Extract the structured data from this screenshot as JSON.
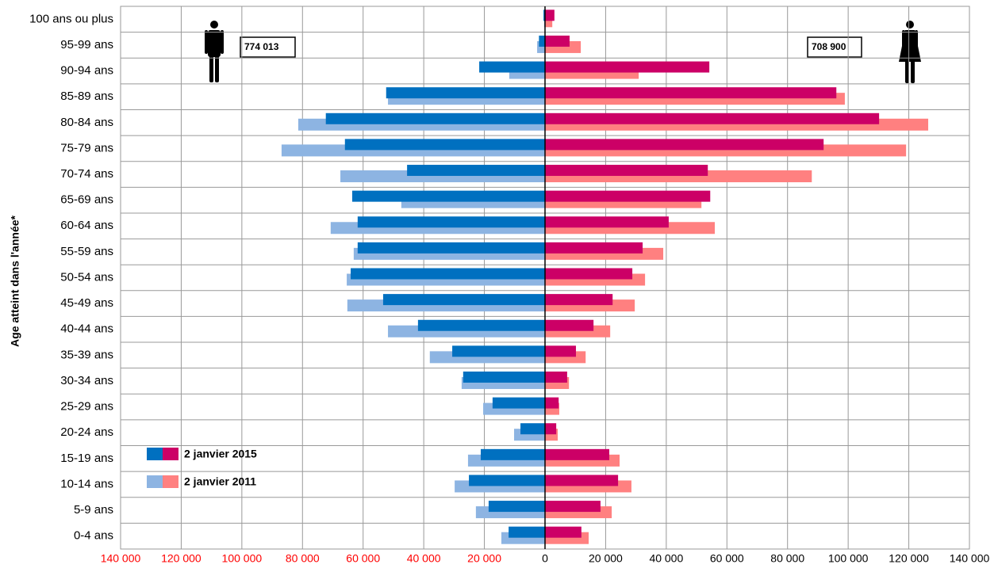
{
  "chart_data": {
    "type": "pyramid",
    "y_axis_label": "Age atteint dans l'année*",
    "categories": [
      "0-4 ans",
      "5-9 ans",
      "10-14 ans",
      "15-19 ans",
      "20-24 ans",
      "25-29 ans",
      "30-34 ans",
      "35-39 ans",
      "40-44 ans",
      "45-49 ans",
      "50-54 ans",
      "55-59 ans",
      "60-64 ans",
      "65-69 ans",
      "70-74 ans",
      "75-79 ans",
      "80-84 ans",
      "85-89 ans",
      "90-94 ans",
      "95-99 ans",
      "100 ans ou plus"
    ],
    "series": [
      {
        "name": "2 janvier 2015",
        "men": {
          "color": "#0070c0",
          "values": [
            -12000,
            -18600,
            -25100,
            -21200,
            -8100,
            -17300,
            -27000,
            -30600,
            -41900,
            -53400,
            -64100,
            -61800,
            -61800,
            -63600,
            -45500,
            -66000,
            -72300,
            -52400,
            -21700,
            -2000,
            -500
          ]
        },
        "women": {
          "color": "#cc0066",
          "values": [
            12000,
            18300,
            24100,
            21200,
            3700,
            4500,
            7300,
            10200,
            16000,
            22300,
            28800,
            32200,
            40800,
            54500,
            53700,
            91900,
            110200,
            96100,
            54200,
            8100,
            3100
          ]
        }
      },
      {
        "name": "2 janvier 2011",
        "men": {
          "color": "#8db4e2",
          "values": [
            -14400,
            -22800,
            -29800,
            -25400,
            -10200,
            -20400,
            -27500,
            -38000,
            -51800,
            -65200,
            -65400,
            -63100,
            -70700,
            -47400,
            -67500,
            -86900,
            -81400,
            -51800,
            -11800,
            -2600,
            -300
          ]
        },
        "women": {
          "color": "#ff8080",
          "values": [
            14400,
            22000,
            28500,
            24600,
            4200,
            4700,
            7900,
            13400,
            21500,
            29600,
            33000,
            39000,
            56000,
            51600,
            88000,
            119100,
            126400,
            98900,
            30900,
            11800,
            2400
          ]
        }
      }
    ],
    "xlim": [
      -140000,
      140000
    ],
    "xticks": [
      {
        "value": -140000,
        "label": "140 000"
      },
      {
        "value": -120000,
        "label": "120 000"
      },
      {
        "value": -100000,
        "label": "100 000"
      },
      {
        "value": -80000,
        "label": "80 000"
      },
      {
        "value": -60000,
        "label": "60 000"
      },
      {
        "value": -40000,
        "label": "40 000"
      },
      {
        "value": -20000,
        "label": "20 000"
      },
      0,
      {
        "value": 20000,
        "label": "20 000"
      },
      {
        "value": 40000,
        "label": "40 000"
      },
      {
        "value": 60000,
        "label": "60 000"
      },
      {
        "value": 80000,
        "label": "80 000"
      },
      {
        "value": 100000,
        "label": "100 000"
      },
      {
        "value": 120000,
        "label": "120 000"
      },
      {
        "value": 140000,
        "label": "140 000"
      }
    ],
    "negative_tick_color": "#ff0000",
    "grid": true,
    "annotations": {
      "men_total": "774 013",
      "women_total": "708 900"
    }
  }
}
